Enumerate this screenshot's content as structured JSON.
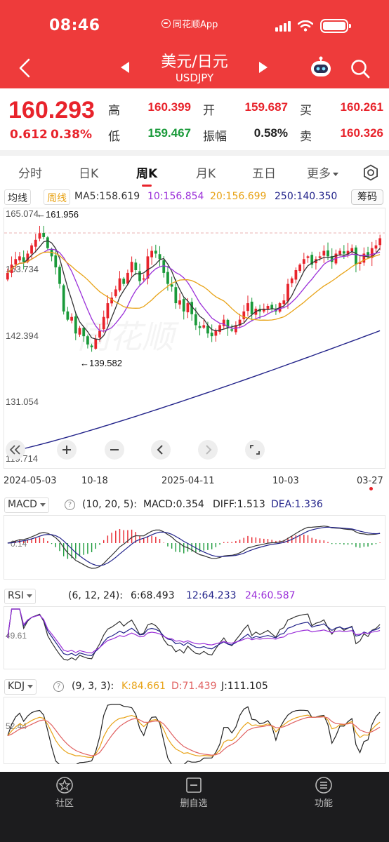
{
  "status_bar": {
    "time": "08:46",
    "app_name": "同花顺App"
  },
  "header": {
    "title": "美元/日元",
    "subtitle": "USDJPY"
  },
  "quote": {
    "price": "160.293",
    "change": "0.612",
    "change_pct": "0.38%",
    "high_label": "高",
    "high": "160.399",
    "open_label": "开",
    "open": "159.687",
    "bid_label": "买",
    "bid": "160.261",
    "low_label": "低",
    "low": "159.467",
    "amplitude_label": "振幅",
    "amplitude": "0.58%",
    "ask_label": "卖",
    "ask": "160.326"
  },
  "tabs": [
    {
      "label": "分时"
    },
    {
      "label": "日K"
    },
    {
      "label": "周K"
    },
    {
      "label": "月K"
    },
    {
      "label": "五日"
    },
    {
      "label": "更多"
    }
  ],
  "active_tab": "周K",
  "ma_legend": {
    "type": "均线",
    "period": "周线",
    "ma5": "MA5:158.619",
    "ma10": "10:156.854",
    "ma20": "20:156.699",
    "ma250": "250:140.350",
    "chips": "筹码"
  },
  "main_axis": {
    "labels": [
      "165.074",
      "153.734",
      "142.394",
      "131.054",
      "119.714"
    ]
  },
  "annotations": {
    "high": "←161.956",
    "low": "←139.582"
  },
  "dates": [
    "2024-05-03",
    "10-18",
    "2025-04-11",
    "10-03",
    "03-27"
  ],
  "macd": {
    "name": "MACD",
    "params": "(10, 20, 5):",
    "macd": "MACD:0.354",
    "diff": "DIFF:1.513",
    "dea": "DEA:1.336",
    "axis": "0.14"
  },
  "rsi": {
    "name": "RSI",
    "params": "(6, 12, 24):",
    "r6": "6:68.493",
    "r12": "12:64.233",
    "r24": "24:60.587",
    "axis": "49.61"
  },
  "kdj": {
    "name": "KDJ",
    "params": "(9, 3, 3):",
    "k": "K:84.661",
    "d": "D:71.439",
    "j": "J:111.105",
    "axis": "52.44"
  },
  "bottom_nav": [
    {
      "label": "社区"
    },
    {
      "label": "删自选"
    },
    {
      "label": "功能"
    }
  ],
  "colors": {
    "up": "#e8232b",
    "down": "#1a9a3a",
    "ma5": "#333333",
    "ma10": "#9b30d9",
    "ma20": "#e8a317",
    "ma250": "#22238a",
    "header_bg": "#ee3b3b"
  },
  "chart_data": {
    "type": "candlestick",
    "period": "weekly",
    "ylim": [
      119.714,
      165.074
    ],
    "y_ticks": [
      165.074,
      153.734,
      142.394,
      131.054,
      119.714
    ],
    "last_close": 160.293,
    "visible_high": 161.956,
    "visible_low": 139.582,
    "ma_latest": {
      "MA5": 158.619,
      "MA10": 156.854,
      "MA20": 156.699,
      "MA250": 140.35
    },
    "ma250_range": [
      121.5,
      143.5
    ],
    "closes": [
      154.0,
      155.5,
      156.5,
      157.0,
      156.0,
      157.5,
      159.0,
      160.0,
      161.2,
      160.5,
      158.5,
      157.0,
      155.0,
      152.0,
      147.0,
      145.5,
      146.0,
      143.0,
      144.0,
      142.5,
      141.0,
      140.5,
      142.0,
      143.5,
      146.0,
      148.5,
      149.5,
      151.0,
      153.0,
      152.0,
      154.0,
      156.0,
      154.5,
      152.5,
      153.0,
      157.0,
      158.0,
      157.5,
      156.5,
      154.0,
      152.0,
      151.5,
      148.5,
      149.0,
      147.0,
      148.5,
      146.5,
      144.5,
      144.0,
      144.5,
      143.0,
      142.5,
      143.5,
      144.5,
      145.5,
      144.0,
      143.5,
      144.5,
      145.5,
      147.0,
      148.5,
      146.5,
      147.5,
      147.0,
      147.5,
      148.0,
      147.5,
      147.0,
      148.5,
      149.0,
      152.0,
      153.0,
      154.5,
      155.5,
      156.5,
      157.0,
      155.5,
      156.5,
      157.0,
      158.0,
      157.0,
      156.0,
      157.5,
      158.0,
      157.5,
      158.0,
      158.5,
      155.5,
      156.0,
      157.5,
      157.0,
      158.5,
      159.0,
      160.293
    ],
    "macd_latest": {
      "MACD": 0.354,
      "DIFF": 1.513,
      "DEA": 1.336
    },
    "rsi_latest": {
      "RSI6": 68.493,
      "RSI12": 64.233,
      "RSI24": 60.587
    },
    "kdj_latest": {
      "K": 84.661,
      "D": 71.439,
      "J": 111.105
    }
  }
}
